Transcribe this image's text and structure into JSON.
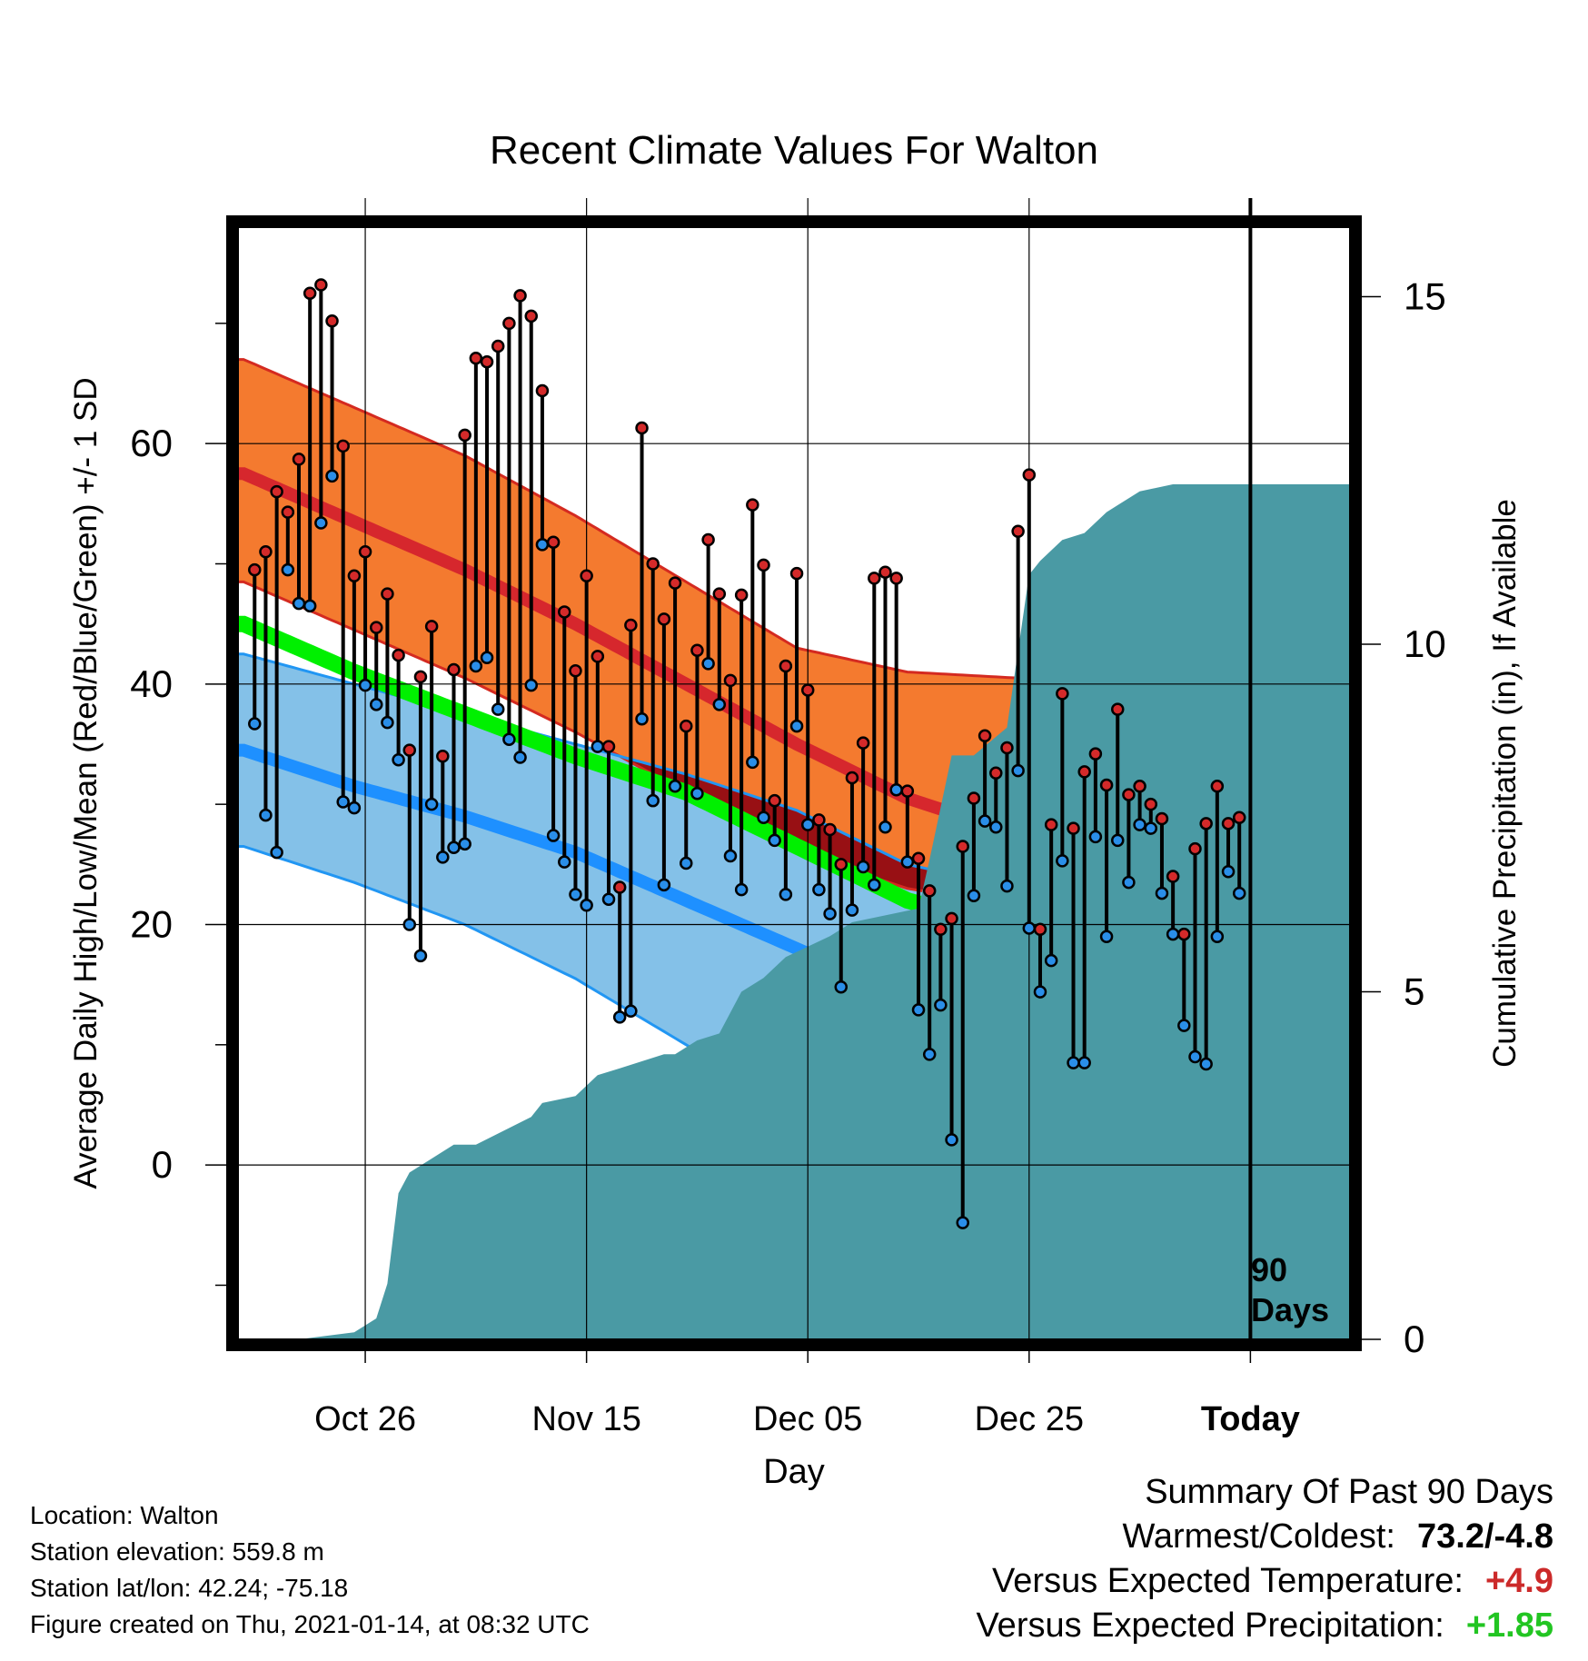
{
  "chart_data": {
    "type": "line",
    "title": "Recent Climate Values For Walton",
    "xlabel": "Day",
    "ylabel_left": "Average Daily High/Low/Mean (Red/Blue/Green) +/- 1 SD",
    "ylabel_right": "Cumulative Precipitation (in), If Available",
    "x_tick_labels": [
      "Oct 26",
      "Nov 15",
      "Dec 05",
      "Dec 25",
      "Today"
    ],
    "x_tick_days": [
      10,
      30,
      50,
      70,
      90
    ],
    "x_range_days": [
      -1.5,
      99
    ],
    "ylim_left": [
      -14.5,
      78
    ],
    "yticks_left": [
      0,
      20,
      40,
      60
    ],
    "ylim_right": [
      0,
      16
    ],
    "yticks_right": [
      0,
      5,
      10,
      15
    ],
    "today_marker_label": [
      "90",
      "Days"
    ],
    "normals": {
      "days": [
        -1,
        9,
        19,
        29,
        39,
        49,
        59,
        69,
        79,
        89,
        99
      ],
      "high_mean": [
        57.5,
        53.5,
        49.5,
        45,
        40,
        35,
        30.5,
        27.5,
        27,
        27.5,
        28.5
      ],
      "high_sd_upper": [
        67,
        63,
        59,
        54,
        48.5,
        43,
        41,
        40.5,
        40.5,
        40.5,
        41
      ],
      "high_sd_lower": [
        48.5,
        44.5,
        40.5,
        36,
        31,
        26,
        23,
        21.5,
        21.5,
        22.5,
        23
      ],
      "mean": [
        45,
        41,
        37.5,
        34,
        31,
        26.5,
        22,
        19.5,
        18,
        18,
        18.5
      ],
      "low_mean": [
        34.5,
        31.5,
        29,
        26,
        22,
        18,
        14,
        11,
        10,
        10,
        10
      ],
      "low_sd_upper": [
        42.5,
        40,
        37.5,
        35,
        32.5,
        29.5,
        25,
        23,
        22,
        22,
        22
      ],
      "low_sd_lower": [
        26.5,
        23.5,
        20,
        15.5,
        10,
        4.5,
        0,
        -2,
        -2,
        -2,
        -2
      ]
    },
    "precipitation_cumulative": {
      "days": [
        -1,
        4,
        9,
        11,
        12,
        13,
        14,
        16,
        18,
        20,
        25,
        26,
        29,
        31,
        33,
        35,
        37,
        38,
        40,
        42,
        44,
        46,
        48,
        52,
        54,
        57,
        60,
        61,
        63,
        65,
        68,
        70,
        71,
        73,
        75,
        77,
        78,
        80,
        83,
        89,
        99
      ],
      "values": [
        0,
        0,
        0.1,
        0.3,
        0.8,
        2.1,
        2.4,
        2.6,
        2.8,
        2.8,
        3.2,
        3.4,
        3.5,
        3.8,
        3.9,
        4.0,
        4.1,
        4.1,
        4.3,
        4.4,
        5.0,
        5.2,
        5.5,
        5.8,
        6.0,
        6.1,
        6.2,
        6.9,
        8.4,
        8.4,
        8.8,
        11.0,
        11.2,
        11.5,
        11.6,
        11.9,
        12.0,
        12.2,
        12.3,
        12.3,
        12.3
      ]
    },
    "observations": {
      "highs": [
        49.5,
        51,
        56,
        54.3,
        58.7,
        72.5,
        73.2,
        70.2,
        59.8,
        49,
        51,
        44.7,
        47.5,
        42.4,
        34.5,
        40.6,
        44.8,
        34,
        41.2,
        60.7,
        67.1,
        66.8,
        68.1,
        70,
        72.3,
        70.6,
        64.4,
        51.8,
        46,
        41.1,
        49,
        42.3,
        34.8,
        23.1,
        44.9,
        61.3,
        50,
        45.4,
        48.4,
        36.5,
        42.8,
        52,
        47.5,
        40.3,
        47.4,
        54.9,
        49.9,
        30.3,
        41.5,
        49.2,
        39.5,
        28.7,
        27.9,
        25,
        32.2,
        35.1,
        48.8,
        49.3,
        48.8,
        31.1,
        25.5,
        22.8,
        19.6,
        20.5,
        26.5,
        30.5,
        35.7,
        32.6,
        34.7,
        52.7,
        57.4,
        19.6,
        28.3,
        39.2,
        28,
        32.7,
        34.2,
        31.6,
        37.9,
        30.8,
        31.5,
        30,
        28.8,
        24,
        19.2,
        26.3,
        28.4,
        31.5,
        28.4,
        28.9
      ],
      "lows": [
        36.7,
        29.1,
        26,
        49.5,
        46.7,
        46.5,
        53.4,
        57.3,
        30.2,
        29.7,
        39.9,
        38.3,
        36.8,
        33.7,
        20,
        17.4,
        30,
        25.6,
        26.4,
        26.7,
        41.5,
        42.2,
        37.9,
        35.4,
        33.9,
        39.9,
        51.6,
        27.4,
        25.2,
        22.5,
        21.6,
        34.8,
        22.1,
        12.3,
        12.8,
        37.1,
        30.3,
        23.3,
        31.5,
        25.1,
        30.9,
        41.7,
        38.3,
        25.7,
        22.9,
        33.5,
        28.9,
        27,
        22.5,
        36.5,
        28.3,
        22.9,
        20.9,
        14.8,
        21.2,
        24.8,
        23.3,
        28.1,
        31.2,
        25.2,
        12.9,
        9.2,
        13.3,
        2.1,
        -4.8,
        22.4,
        28.6,
        28.1,
        23.2,
        32.8,
        19.7,
        14.4,
        17,
        25.3,
        8.5,
        8.5,
        27.3,
        19,
        27,
        23.5,
        28.3,
        28,
        22.6,
        19.2,
        11.6,
        9,
        8.4,
        19,
        24.4,
        22.6
      ]
    }
  },
  "info": {
    "location": "Location: Walton",
    "elevation": "Station elevation: 559.8 m",
    "latlon": "Station lat/lon: 42.24; -75.18",
    "created": "Figure created on Thu, 2021-01-14, at 08:32 UTC"
  },
  "summary": {
    "heading": "Summary Of Past 90 Days",
    "warmest_coldest_label": "Warmest/Coldest:",
    "warmest_coldest_value": "73.2/-4.8",
    "temp_label": "Versus Expected Temperature:",
    "temp_value": "+4.9",
    "precip_label": "Versus Expected Precipitation:",
    "precip_value": "+1.85"
  },
  "colors": {
    "high_band": "#f47a2f",
    "high_edge": "#d42a20",
    "high_mean_line": "#d6272d",
    "overlap_band": "#981014",
    "low_band": "#84c1e8",
    "low_edge": "#2196f3",
    "low_mean_line": "#1e90ff",
    "mean_line": "#00f000",
    "precip_fill": "#4a9aa4",
    "high_dot": "#d42a2a",
    "low_dot": "#2a8ee8",
    "temp_value_color": "#cc2a2a",
    "precip_value_color": "#22c522"
  }
}
